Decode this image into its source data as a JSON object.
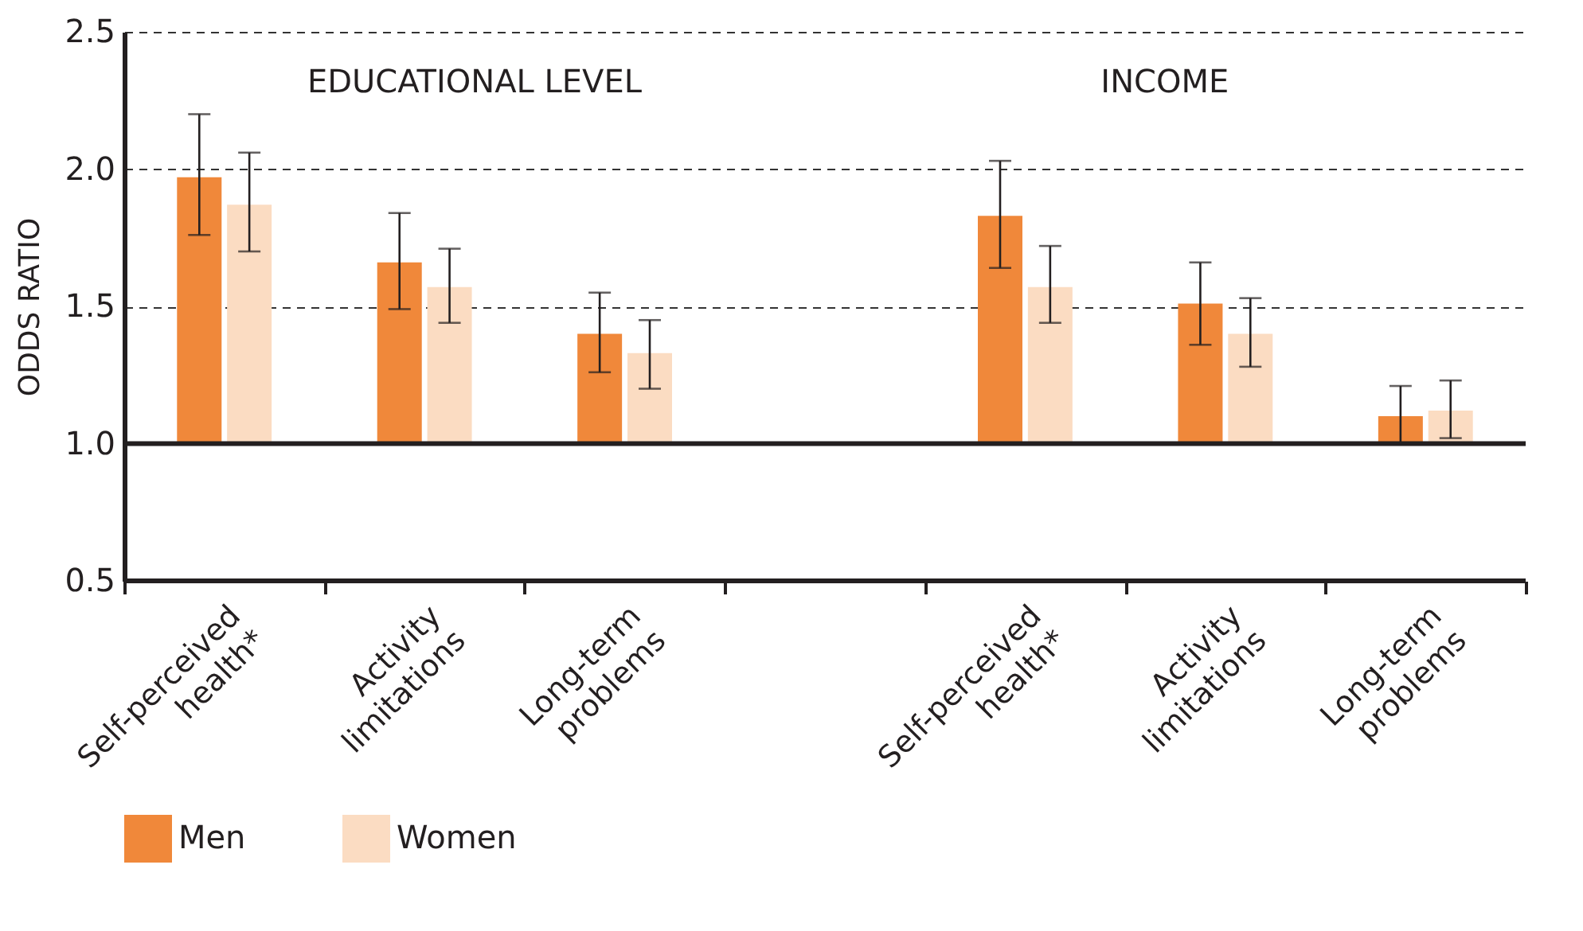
{
  "chart_data": {
    "type": "bar",
    "ylabel": "ODDS RATIO",
    "categories": [
      "Self-perceived\nhealth*",
      "Activity\nlimitations",
      "Long-term\nproblems",
      null,
      "Self-perceived\nhealth*",
      "Activity\nlimitations",
      "Long-term\nproblems"
    ],
    "series": [
      {
        "name": "Men",
        "color": "#f0883a",
        "base": [
          1,
          1,
          1,
          null,
          1,
          1,
          1
        ],
        "values": [
          0.97,
          0.66,
          0.4,
          null,
          0.83,
          0.51,
          0.1
        ],
        "errors": [
          [
            1.76,
            2.2
          ],
          [
            1.49,
            1.84
          ],
          [
            1.26,
            1.55
          ],
          null,
          [
            1.64,
            2.03
          ],
          [
            1.36,
            1.66
          ],
          [
            1.0,
            1.21
          ]
        ]
      },
      {
        "name": "Women",
        "color": "#fbdcc2",
        "base": [
          1,
          1,
          1,
          null,
          1,
          1,
          1
        ],
        "values": [
          0.87,
          0.57,
          0.33,
          null,
          0.57,
          0.4,
          0.12
        ],
        "errors": [
          [
            1.7,
            2.06
          ],
          [
            1.44,
            1.71
          ],
          [
            1.2,
            1.45
          ],
          null,
          [
            1.44,
            1.72
          ],
          [
            1.28,
            1.53
          ],
          [
            1.02,
            1.23
          ]
        ]
      }
    ],
    "ylim": [
      0.5,
      2.5
    ],
    "yticks": [
      {
        "value": 0.5,
        "label": "0.5"
      },
      {
        "value": 1,
        "label": "1.0"
      },
      {
        "value": 1.5,
        "label": "1.5"
      },
      {
        "value": 2,
        "label": "2.0"
      },
      {
        "value": 2.5,
        "label": "2.5"
      }
    ],
    "ref_lines": [
      {
        "axis": "y",
        "value": 1,
        "color": "#231f20",
        "line_style": "solid"
      }
    ],
    "annotations": [
      "EDUCATIONAL LEVEL",
      "INCOME"
    ],
    "grid": "y",
    "line_style": "dashed",
    "legend": "bottom"
  }
}
